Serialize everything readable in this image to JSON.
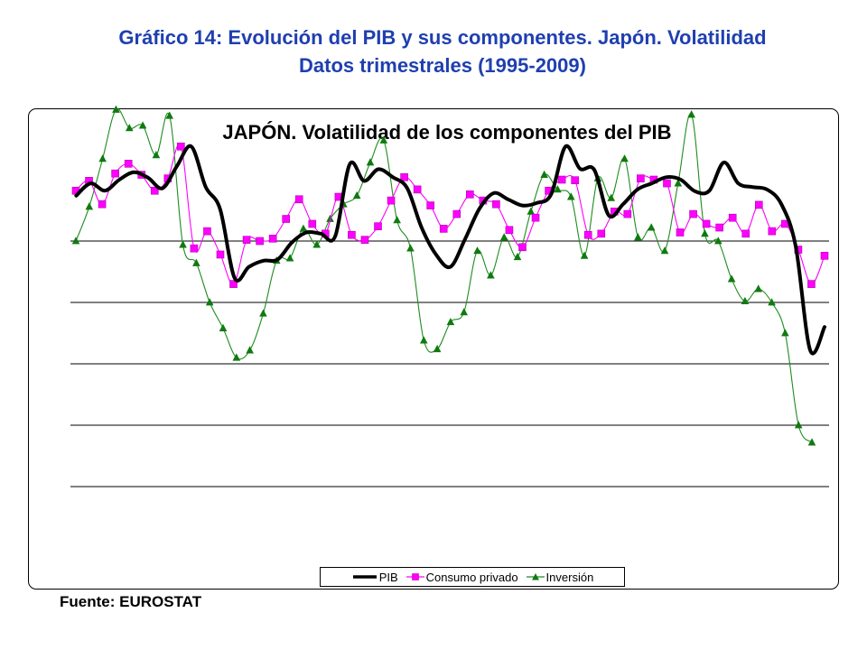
{
  "header": {
    "title_line1": "Gráfico 14: Evolución del PIB y sus componentes. Japón. Volatilidad",
    "title_line2": "Datos trimestrales (1995-2009)"
  },
  "source": "Fuente: EUROSTAT",
  "chart_data": {
    "type": "line",
    "title": "JAPÓN. Volatilidad de los componentes del PIB",
    "xlabel": "",
    "ylabel": "",
    "x_tick_labels_shown": false,
    "y_tick_labels_shown": false,
    "grid": "horizontal",
    "gridline_count": 5,
    "legend_position": "bottom",
    "note": "Axis tick labels are not printed; values are read in gridline units (top gridline = 0, each lower gridline = -1).",
    "ylim": [
      -4.9,
      2.45
    ],
    "series": [
      {
        "name": "PIB",
        "color": "#000000",
        "marker": "none",
        "values": [
          0.74,
          0.94,
          0.82,
          1.0,
          1.12,
          1.03,
          0.86,
          1.22,
          1.54,
          0.88,
          0.52,
          -0.6,
          -0.42,
          -0.32,
          -0.3,
          -0.02,
          0.14,
          0.12,
          0.08,
          1.25,
          0.98,
          1.17,
          1.04,
          0.86,
          0.22,
          -0.22,
          -0.42,
          0.02,
          0.52,
          0.78,
          0.68,
          0.58,
          0.62,
          0.76,
          1.54,
          1.18,
          1.16,
          0.42,
          0.6,
          0.84,
          0.94,
          1.04,
          1.0,
          0.81,
          0.82,
          1.28,
          0.94,
          0.88,
          0.84,
          0.6,
          -0.09,
          -1.78,
          -1.4
        ]
      },
      {
        "name": "Consumo privado",
        "color": "#ff00ff",
        "marker": "square",
        "values": [
          0.82,
          0.98,
          0.6,
          1.1,
          1.26,
          1.08,
          0.82,
          1.02,
          1.54,
          -0.12,
          0.16,
          -0.22,
          -0.7,
          0.02,
          0.0,
          0.04,
          0.36,
          0.68,
          0.28,
          0.12,
          0.72,
          0.1,
          0.02,
          0.24,
          0.66,
          1.04,
          0.84,
          0.58,
          0.2,
          0.44,
          0.76,
          0.66,
          0.6,
          0.18,
          -0.1,
          0.38,
          0.82,
          1.0,
          0.99,
          0.1,
          0.12,
          0.48,
          0.44,
          1.02,
          1.0,
          0.94,
          0.14,
          0.44,
          0.28,
          0.22,
          0.38,
          0.12,
          0.59,
          0.16,
          0.28,
          -0.14,
          -0.7,
          -0.24
        ]
      },
      {
        "name": "Inversión",
        "color": "#1e8c1e",
        "marker": "triangle",
        "values": [
          0.0,
          0.56,
          1.34,
          2.14,
          1.84,
          1.88,
          1.4,
          2.04,
          -0.06,
          -0.36,
          -1.0,
          -1.42,
          -1.9,
          -1.78,
          -1.18,
          -0.32,
          -0.28,
          0.2,
          -0.06,
          0.36,
          0.6,
          0.74,
          1.28,
          1.64,
          0.34,
          -0.12,
          -1.62,
          -1.76,
          -1.32,
          -1.16,
          -0.16,
          -0.56,
          0.06,
          -0.26,
          0.48,
          1.08,
          0.84,
          0.72,
          -0.24,
          1.02,
          0.7,
          1.34,
          0.06,
          0.22,
          -0.16,
          0.94,
          2.06,
          0.12,
          0.0,
          -0.62,
          -0.98,
          -0.78,
          -1.0,
          -1.5,
          -3.0,
          -3.28
        ]
      }
    ]
  }
}
